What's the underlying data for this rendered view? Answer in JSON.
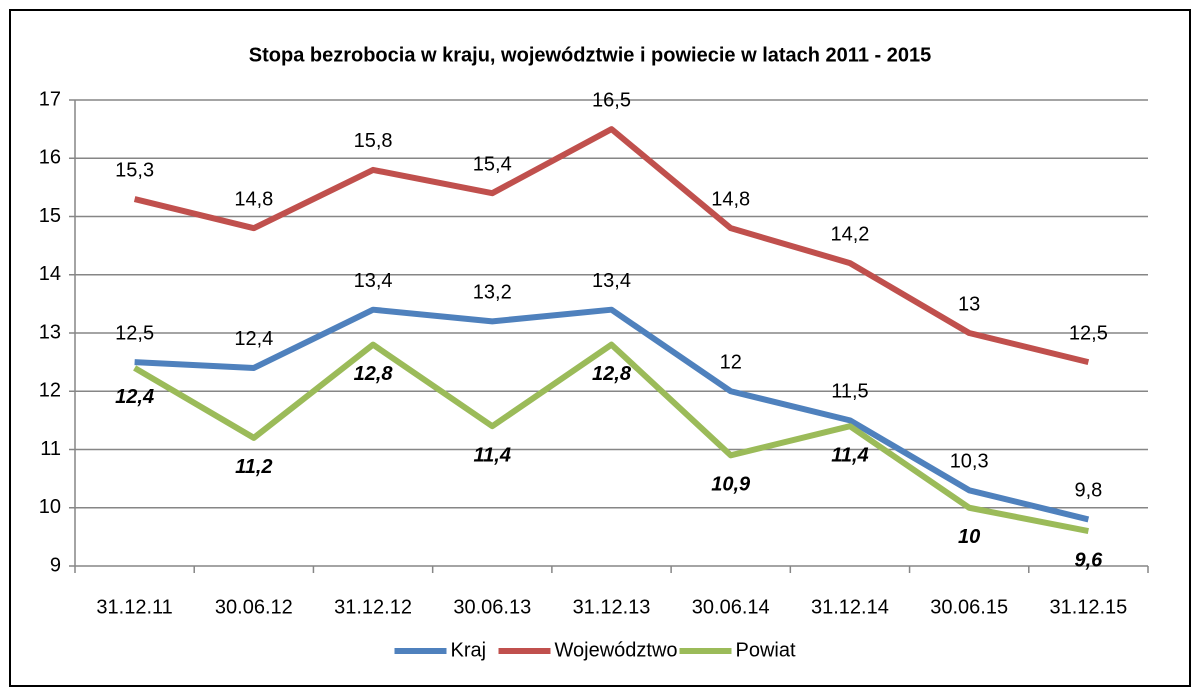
{
  "chart_data": {
    "type": "line",
    "title": "Stopa bezrobocia w kraju, województwie i powiecie w latach 2011 - 2015",
    "categories": [
      "31.12.11",
      "30.06.12",
      "31.12.12",
      "30.06.13",
      "31.12.13",
      "30.06.14",
      "31.12.14",
      "30.06.15",
      "31.12.15"
    ],
    "series": [
      {
        "name": "Kraj",
        "color": "#4f81bd",
        "label_position": "above",
        "values": [
          12.5,
          12.4,
          13.4,
          13.2,
          13.4,
          12,
          11.5,
          10.3,
          9.8
        ],
        "value_labels": [
          "12,5",
          "12,4",
          "13,4",
          "13,2",
          "13,4",
          "12",
          "11,5",
          "10,3",
          "9,8"
        ]
      },
      {
        "name": "Województwo",
        "color": "#c0504d",
        "label_position": "above",
        "values": [
          15.3,
          14.8,
          15.8,
          15.4,
          16.5,
          14.8,
          14.2,
          13,
          12.5
        ],
        "value_labels": [
          "15,3",
          "14,8",
          "15,8",
          "15,4",
          "16,5",
          "14,8",
          "14,2",
          "13",
          "12,5"
        ]
      },
      {
        "name": "Powiat",
        "color": "#9bbb59",
        "label_position": "below",
        "values": [
          12.4,
          11.2,
          12.8,
          11.4,
          12.8,
          10.9,
          11.4,
          10,
          9.6
        ],
        "value_labels": [
          "12,4",
          "11,2",
          "12,8",
          "11,4",
          "12,8",
          "10,9",
          "11,4",
          "10",
          "9,6"
        ]
      }
    ],
    "ylim": [
      9,
      17
    ],
    "yticks": [
      9,
      10,
      11,
      12,
      13,
      14,
      15,
      16,
      17
    ],
    "grid": true,
    "legend": "bottom"
  }
}
